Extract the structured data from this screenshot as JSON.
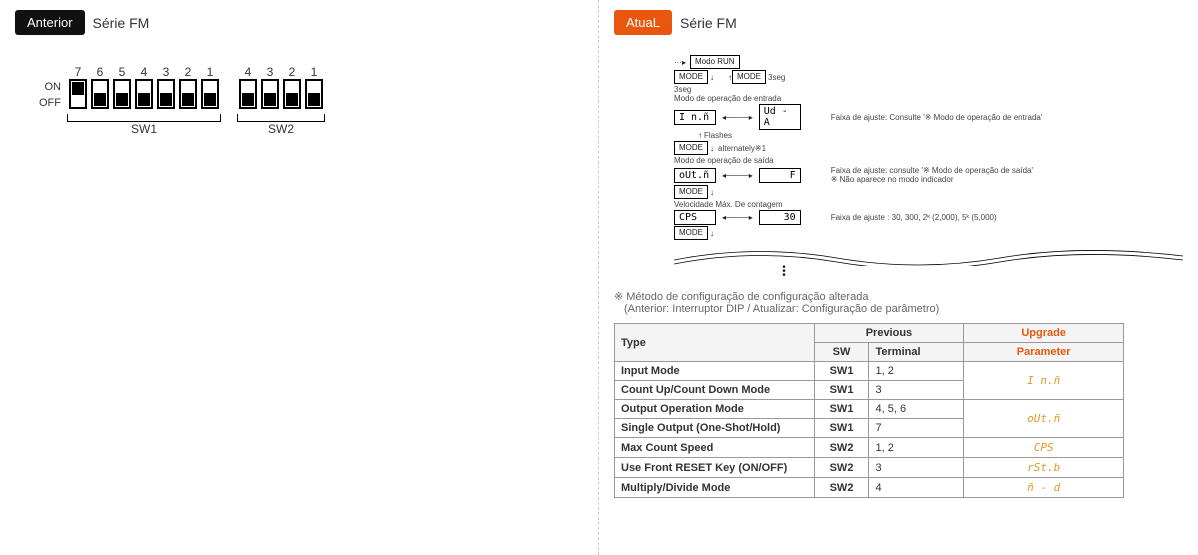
{
  "left": {
    "badge": "Anterior",
    "series": "Série FM",
    "on_label": "ON",
    "off_label": "OFF",
    "sw1_numbers": [
      "7",
      "6",
      "5",
      "4",
      "3",
      "2",
      "1"
    ],
    "sw2_numbers": [
      "4",
      "3",
      "2",
      "1"
    ],
    "sw1_states": [
      "on",
      "off",
      "off",
      "off",
      "off",
      "off",
      "off"
    ],
    "sw2_states": [
      "off",
      "off",
      "off",
      "off"
    ],
    "sw1_label": "SW1",
    "sw2_label": "SW2"
  },
  "right": {
    "badge": "AtuaL",
    "series": "Série FM",
    "flow": {
      "run_mode": "Modo RUN",
      "mode_btn": "MODE",
      "t3sec": "3seg",
      "input_mode_title": "Modo de operação de entrada",
      "input_disp": "I n.ñ",
      "input_val": "Ud - A",
      "flashes": "Flashes",
      "alternately": "alternately",
      "hint_input": "Faixa de ajuste: Consulte '※ Modo de operação de entrada'",
      "output_mode_title": "Modo de operação de saída",
      "output_disp": "oUt.ñ",
      "output_val": "F",
      "hint_output1": "Faixa de ajuste: consulte '※ Modo de operação de saída'",
      "hint_output2": "※ Não aparece no modo indicador",
      "max_speed_title": "Velocidade Máx. De contagem",
      "cps_disp": "CPS",
      "cps_val": "30",
      "hint_cps": "Faixa de ajuste : 30, 300, 2ᵏ (2,000), 5ᵏ (5,000)"
    },
    "note_line1": "※ Método de configuração de configuração alterada",
    "note_line2": "(Anterior: Interruptor DIP / Atualizar: Configuração de parâmetro)",
    "table": {
      "head_type": "Type",
      "head_previous": "Previous",
      "head_upgrade": "Upgrade",
      "head_sw": "SW",
      "head_terminal": "Terminal",
      "head_parameter": "Parameter",
      "rows": [
        {
          "type": "Input Mode",
          "sw": "SW1",
          "term": "1, 2",
          "param": "I n.ñ",
          "rowspan_param": 2
        },
        {
          "type": "Count Up/Count Down Mode",
          "sw": "SW1",
          "term": "3"
        },
        {
          "type": "Output Operation Mode",
          "sw": "SW1",
          "term": "4, 5, 6",
          "param": "oUt.ñ",
          "rowspan_param": 2
        },
        {
          "type": "Single Output (One-Shot/Hold)",
          "sw": "SW1",
          "term": "7"
        },
        {
          "type": "Max Count Speed",
          "sw": "SW2",
          "term": "1, 2",
          "param": "CPS"
        },
        {
          "type": "Use Front RESET Key (ON/OFF)",
          "sw": "SW2",
          "term": "3",
          "param": "rSt.b"
        },
        {
          "type": "Multiply/Divide Mode",
          "sw": "SW2",
          "term": "4",
          "param": "ñ - d"
        }
      ]
    }
  },
  "colors": {
    "orange": "#e8570d",
    "dark": "#111111",
    "param": "#dd9922"
  }
}
